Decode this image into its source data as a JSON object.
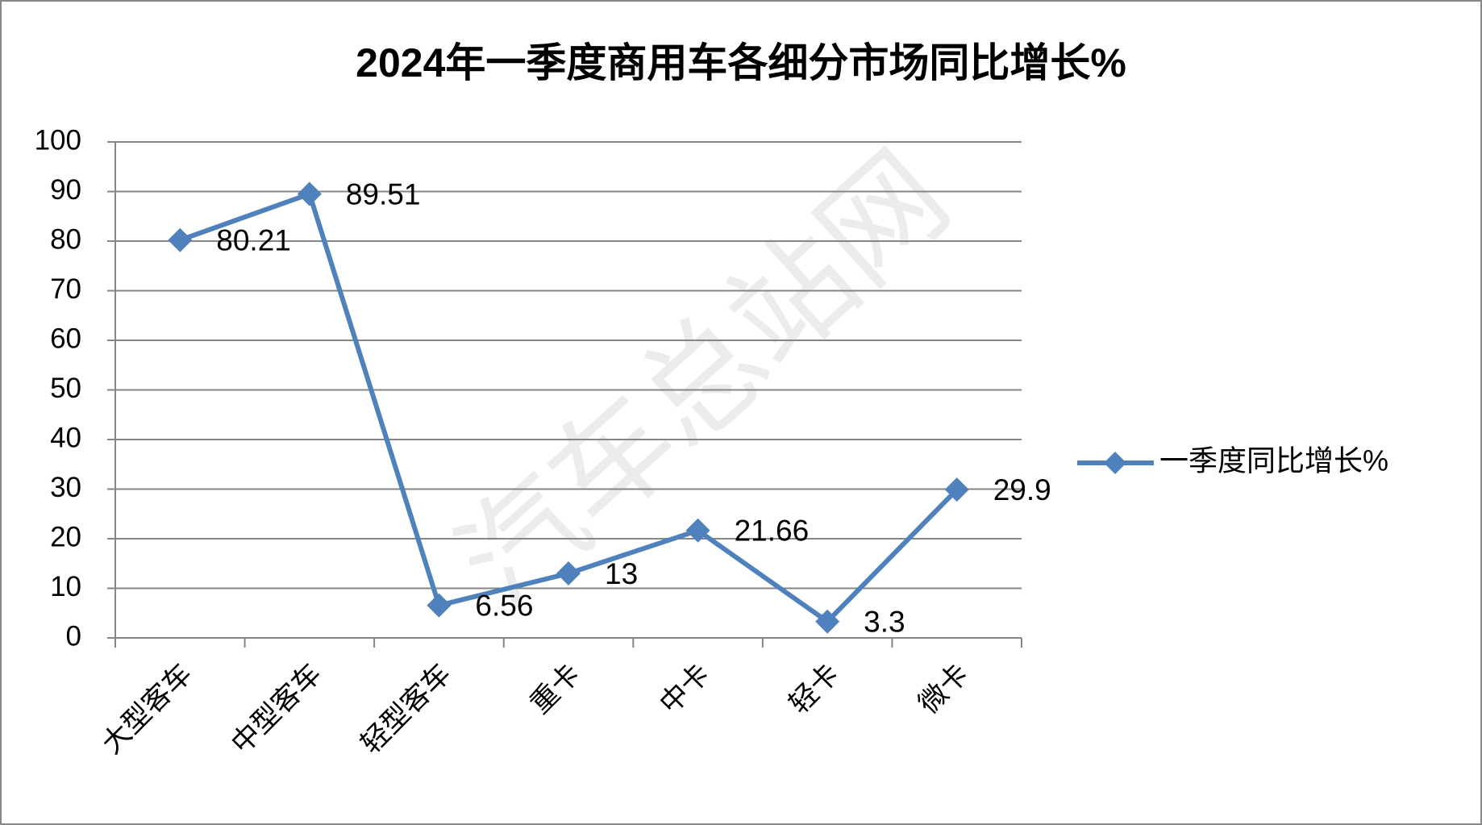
{
  "chart_data": {
    "type": "line",
    "title": "2024年一季度商用车各细分市场同比增长%",
    "watermark": "汽车总站网",
    "categories": [
      "大型客车",
      "中型客车",
      "轻型客车",
      "重卡",
      "中卡",
      "轻卡",
      "微卡"
    ],
    "series": [
      {
        "name": "一季度同比增长%",
        "color": "#4f81bd",
        "values": [
          80.21,
          89.51,
          6.56,
          13,
          21.66,
          3.3,
          29.9
        ]
      }
    ],
    "ylim": [
      0,
      100
    ],
    "yticks": [
      0,
      10,
      20,
      30,
      40,
      50,
      60,
      70,
      80,
      90,
      100
    ],
    "grid": true,
    "legend": "right"
  }
}
